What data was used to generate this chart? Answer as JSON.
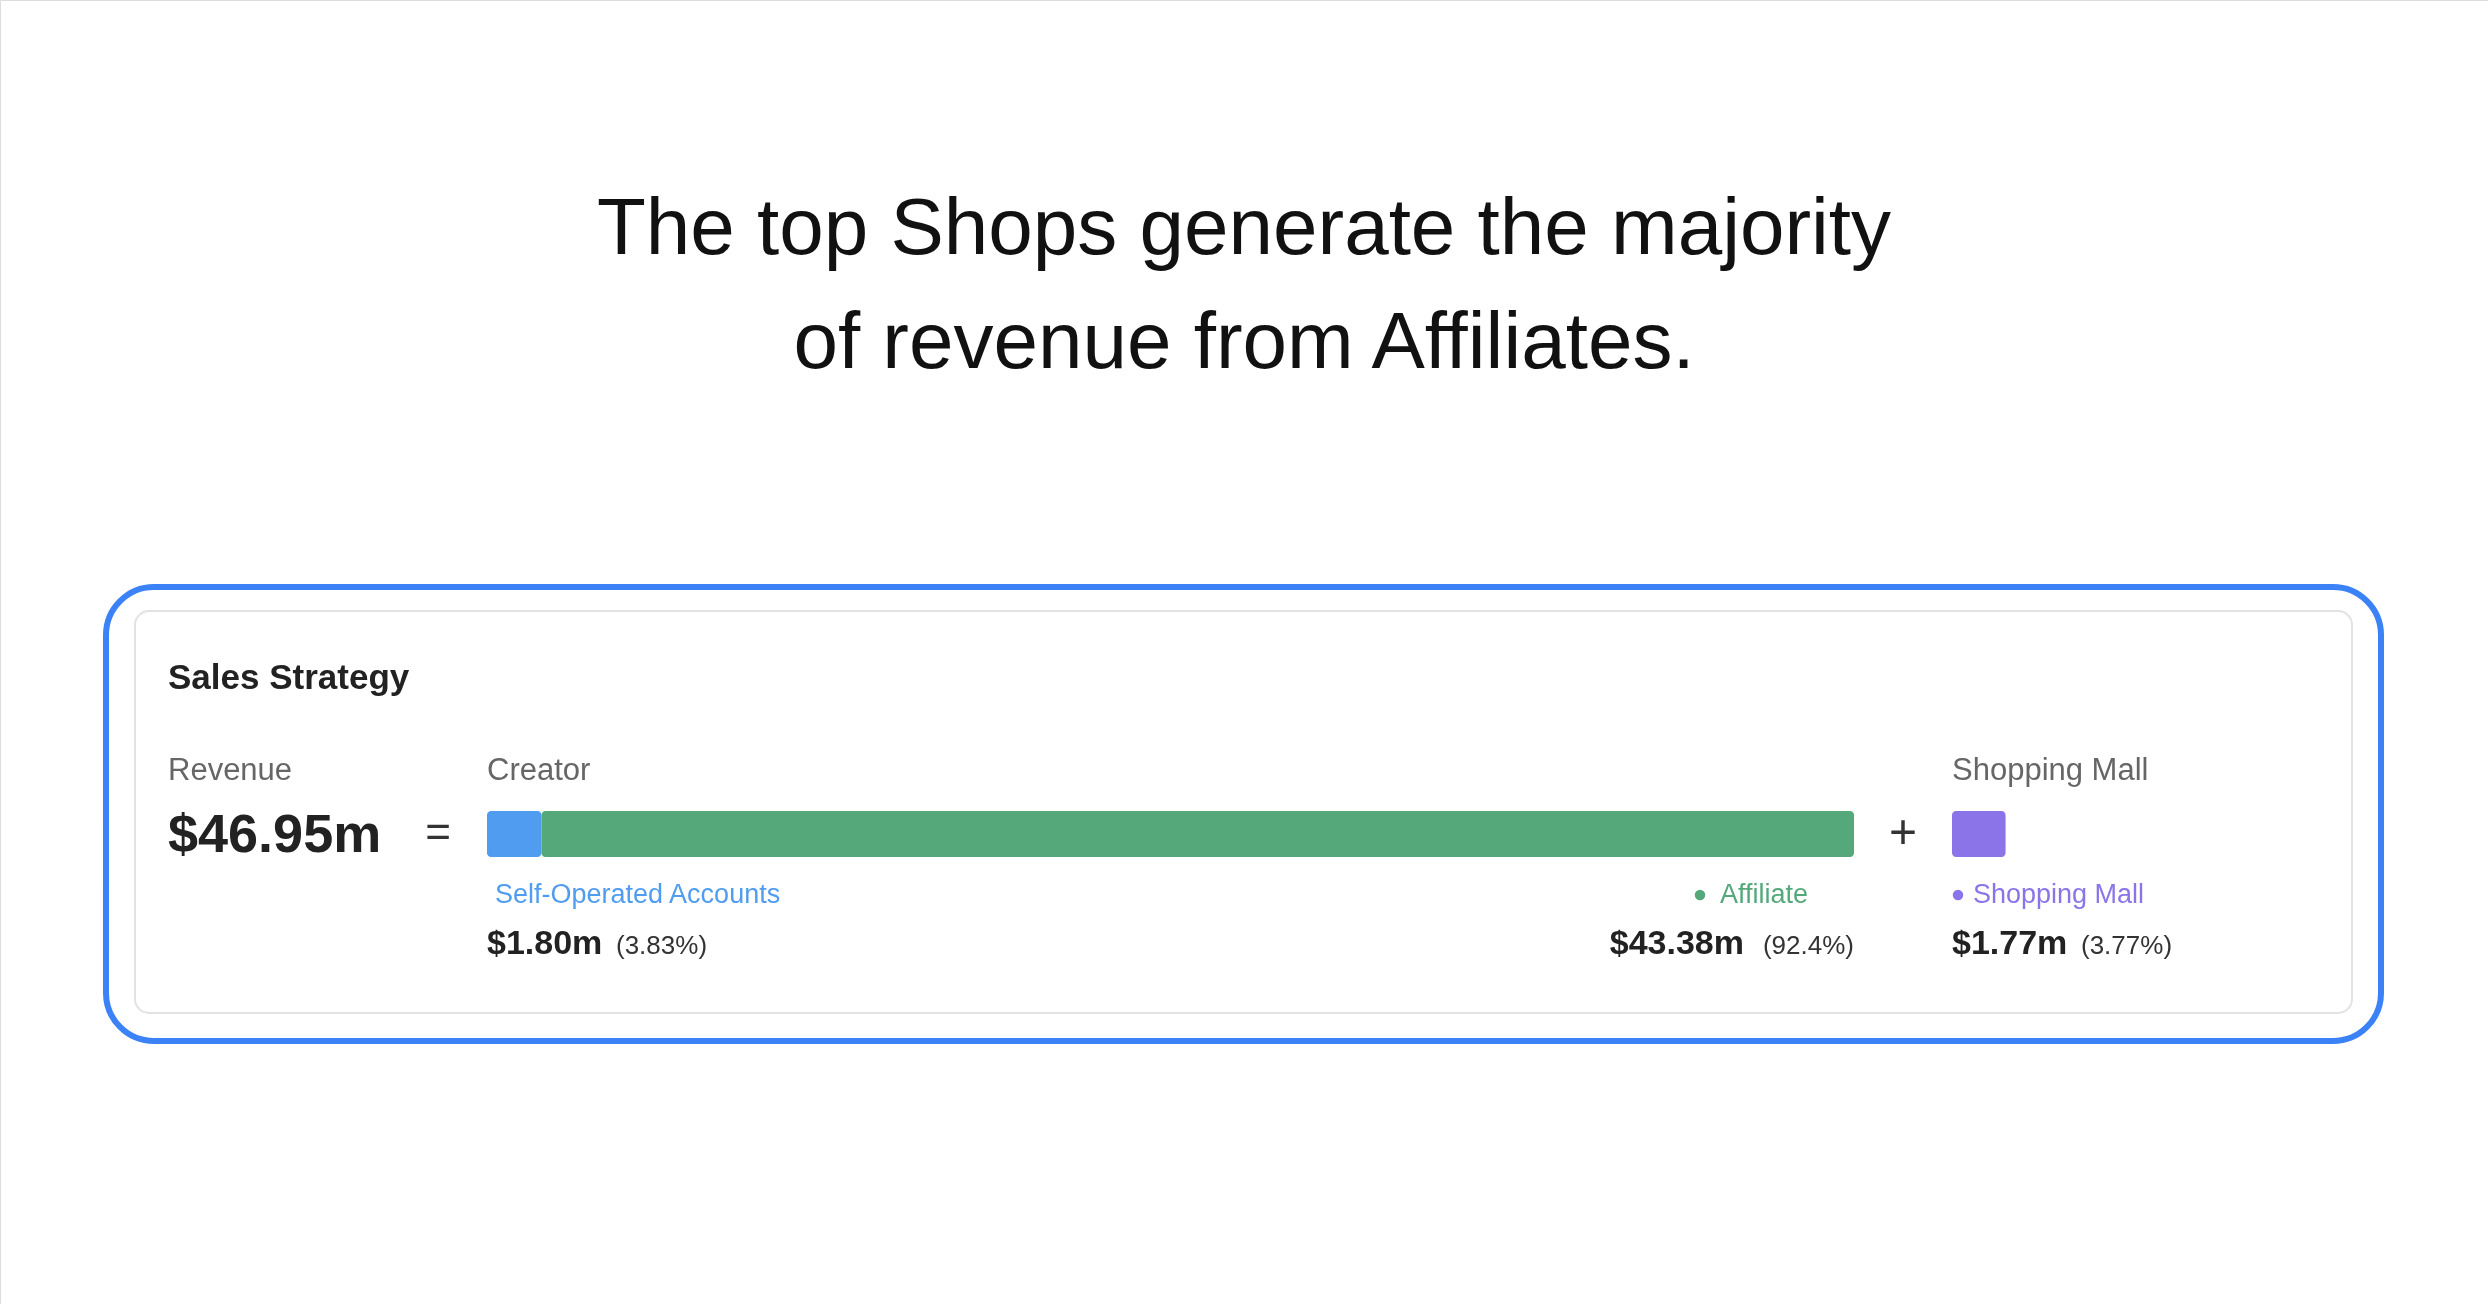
{
  "chart_data": {
    "type": "other",
    "title": "The top Shops generate the majority of revenue from Affiliates.",
    "subtitle": "Sales Strategy",
    "categories": [
      "Self-Operated Accounts",
      "Affiliate",
      "Shopping Mall"
    ],
    "values": [
      1.8,
      43.38,
      1.77
    ],
    "colors": [
      "#4f9cf0",
      "#55a87a",
      "#8b74e8"
    ],
    "value_labels": [
      "$1.80m",
      "$43.38m",
      "$1.77m"
    ],
    "annotations": [
      "Revenue",
      "$46.95m",
      "=",
      "Creator",
      "+",
      "Shopping Mall",
      "(3.83%)",
      "(92.4%)",
      "(3.77%)"
    ]
  }
}
